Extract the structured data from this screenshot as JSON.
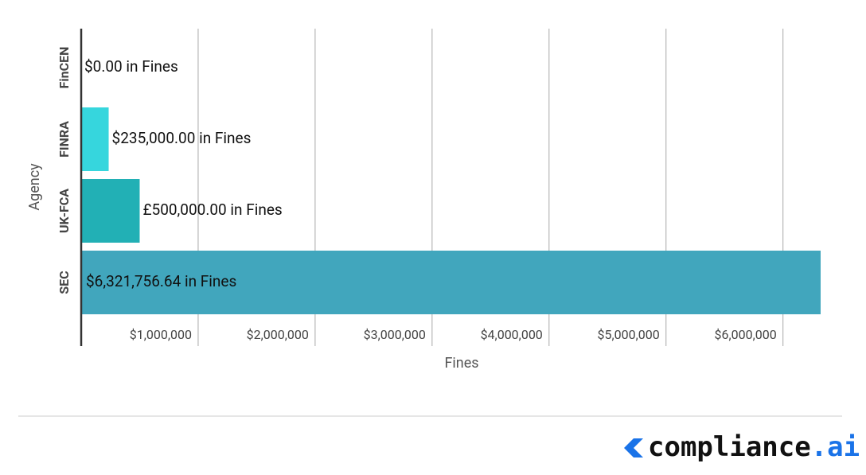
{
  "chart_data": {
    "type": "hbar",
    "x_label": "Fines",
    "y_label": "Agency",
    "categories": [
      "FinCEN",
      "FINRA",
      "UK-FCA",
      "SEC"
    ],
    "values": [
      0,
      235000,
      500000,
      6321756.64
    ],
    "value_labels": [
      "$0.00 in Fines",
      "$235,000.00 in Fines",
      "£500,000.00 in Fines",
      "$6,321,756.64 in Fines"
    ],
    "colors": [
      "#36d6dd",
      "#36d6dd",
      "#22b0b5",
      "#41a6bd"
    ],
    "xlim": [
      0,
      6321756.64
    ],
    "xticks": [
      {
        "value": 1000000,
        "label": "$1,000,000"
      },
      {
        "value": 2000000,
        "label": "$2,000,000"
      },
      {
        "value": 3000000,
        "label": "$3,000,000"
      },
      {
        "value": 4000000,
        "label": "$4,000,000"
      },
      {
        "value": 5000000,
        "label": "$5,000,000"
      },
      {
        "value": 6000000,
        "label": "$6,000,000"
      }
    ],
    "grid": true
  },
  "logo": {
    "name": "compliance",
    "suffix": ".ai"
  }
}
